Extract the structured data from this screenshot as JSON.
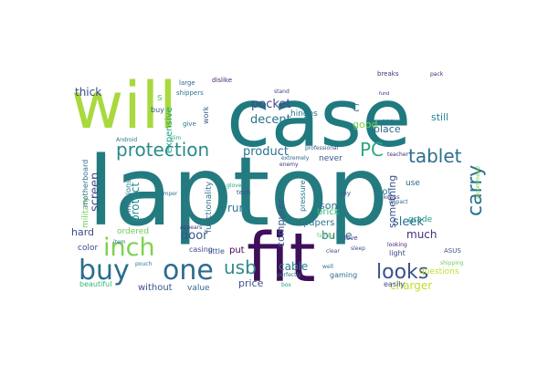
{
  "words": [
    {
      "text": "case",
      "color": "#1f7a80"
    },
    {
      "text": "laptop",
      "color": "#237b80"
    },
    {
      "text": "will",
      "color": "#a8d93d"
    },
    {
      "text": "fit",
      "color": "#3f0f59"
    },
    {
      "text": "inch",
      "color": "#7dd250"
    },
    {
      "text": "buy",
      "color": "#276e8e"
    },
    {
      "text": "one",
      "color": "#2e6b8e"
    },
    {
      "text": "looks",
      "color": "#3b528b"
    },
    {
      "text": "protection",
      "color": "#2b8a8b"
    },
    {
      "text": "tablet",
      "color": "#2b6f8e"
    },
    {
      "text": "carry",
      "color": "#2c728e"
    },
    {
      "text": "usb",
      "color": "#2d8c89"
    },
    {
      "text": "PC",
      "color": "#2ca87f"
    },
    {
      "text": "pocket",
      "color": "#3e4a89"
    },
    {
      "text": "product",
      "color": "#2b738e"
    },
    {
      "text": "screen",
      "color": "#3e4d8a"
    },
    {
      "text": "charger",
      "color": "#bddf26"
    },
    {
      "text": "decent",
      "color": "#2c728e"
    },
    {
      "text": "thick",
      "color": "#3e4a89"
    },
    {
      "text": "protect",
      "color": "#238a8d"
    },
    {
      "text": "good",
      "color": "#7ad151"
    },
    {
      "text": "door",
      "color": "#3a548c"
    },
    {
      "text": "cable",
      "color": "#27808e"
    },
    {
      "text": "much",
      "color": "#472d7b"
    },
    {
      "text": "sleek",
      "color": "#2d718e"
    },
    {
      "text": "price",
      "color": "#3b528b"
    },
    {
      "text": "son",
      "color": "#2c728e"
    },
    {
      "text": "bulge",
      "color": "#2a788e"
    },
    {
      "text": "still",
      "color": "#25848e"
    },
    {
      "text": "C",
      "color": "#2a788e"
    },
    {
      "text": "s",
      "color": "#54c568"
    },
    {
      "text": "expensive",
      "color": "#1fa187"
    },
    {
      "text": "put",
      "color": "#440154"
    },
    {
      "text": "hard",
      "color": "#3e4a89"
    },
    {
      "text": "something",
      "color": "#3b528b"
    },
    {
      "text": "computer",
      "color": "#3a548c"
    },
    {
      "text": "papers",
      "color": "#2a788e"
    },
    {
      "text": "brick",
      "color": "#35b779"
    },
    {
      "text": "run",
      "color": "#287c8e"
    },
    {
      "text": "never",
      "color": "#3a548c"
    },
    {
      "text": "hinges",
      "color": "#2c728e"
    },
    {
      "text": "place",
      "color": "#31688e"
    },
    {
      "text": "got",
      "color": "#2a788e"
    },
    {
      "text": "use",
      "color": "#2f6c8e"
    },
    {
      "text": "grade",
      "color": "#20928c"
    },
    {
      "text": "without",
      "color": "#3b528b"
    },
    {
      "text": "value",
      "color": "#2f6c8e"
    },
    {
      "text": "military",
      "color": "#6ece58"
    },
    {
      "text": "motherboard",
      "color": "#2c728e"
    },
    {
      "text": "connections",
      "color": "#287c8e"
    },
    {
      "text": "functionality",
      "color": "#2c728e"
    },
    {
      "text": "ordered",
      "color": "#6ece58"
    },
    {
      "text": "casing",
      "color": "#3f4788"
    },
    {
      "text": "color",
      "color": "#3e4a89"
    },
    {
      "text": "beautiful",
      "color": "#35b779"
    },
    {
      "text": "little",
      "color": "#3a548c"
    },
    {
      "text": "pressure",
      "color": "#2c728e"
    },
    {
      "text": "say",
      "color": "#3a548c"
    },
    {
      "text": "love",
      "color": "#46337f"
    },
    {
      "text": "looking",
      "color": "#482173"
    },
    {
      "text": "light",
      "color": "#3f4889"
    },
    {
      "text": "gaming",
      "color": "#2e6f8e"
    },
    {
      "text": "easily",
      "color": "#3b528b"
    },
    {
      "text": "questions",
      "color": "#bddf26"
    },
    {
      "text": "ASUS",
      "color": "#3b528b"
    },
    {
      "text": "shipping",
      "color": "#6ece58"
    },
    {
      "text": "work",
      "color": "#38598c"
    },
    {
      "text": "buy",
      "color": "#3a548c"
    },
    {
      "text": "large",
      "color": "#31688e"
    },
    {
      "text": "dislike",
      "color": "#481b6d"
    },
    {
      "text": "shippers",
      "color": "#2a788e"
    },
    {
      "text": "give",
      "color": "#2a788e"
    },
    {
      "text": "breaks",
      "color": "#472d7b"
    },
    {
      "text": "pack",
      "color": "#482173"
    },
    {
      "text": "fund",
      "color": "#482878"
    },
    {
      "text": "one",
      "color": "#2a788e"
    },
    {
      "text": "teacher",
      "color": "#482878"
    },
    {
      "text": "professional",
      "color": "#3b528b"
    },
    {
      "text": "extremely",
      "color": "#31688e"
    },
    {
      "text": "recommend",
      "color": "#7ad151"
    },
    {
      "text": "Android",
      "color": "#2a788e"
    },
    {
      "text": "slim",
      "color": "#25ab82"
    },
    {
      "text": "tech",
      "color": "#3b528b"
    },
    {
      "text": "glove",
      "color": "#22a884"
    },
    {
      "text": "jumper",
      "color": "#2a788e"
    },
    {
      "text": "appears",
      "color": "#46337f"
    },
    {
      "text": "impact",
      "color": "#31688e"
    },
    {
      "text": "clear",
      "color": "#3b528b"
    },
    {
      "text": "perfectly",
      "color": "#2a788e"
    },
    {
      "text": "box",
      "color": "#1fa187"
    },
    {
      "text": "pouch",
      "color": "#2a788e"
    },
    {
      "text": "sleep",
      "color": "#3b528b"
    },
    {
      "text": "family",
      "color": "#6ece58"
    },
    {
      "text": "well",
      "color": "#2c728e"
    },
    {
      "text": "keeps",
      "color": "#3f4788"
    },
    {
      "text": "stand",
      "color": "#3f4788"
    },
    {
      "text": "enemy",
      "color": "#472d7b"
    },
    {
      "text": "item",
      "color": "#2a788e"
    }
  ]
}
